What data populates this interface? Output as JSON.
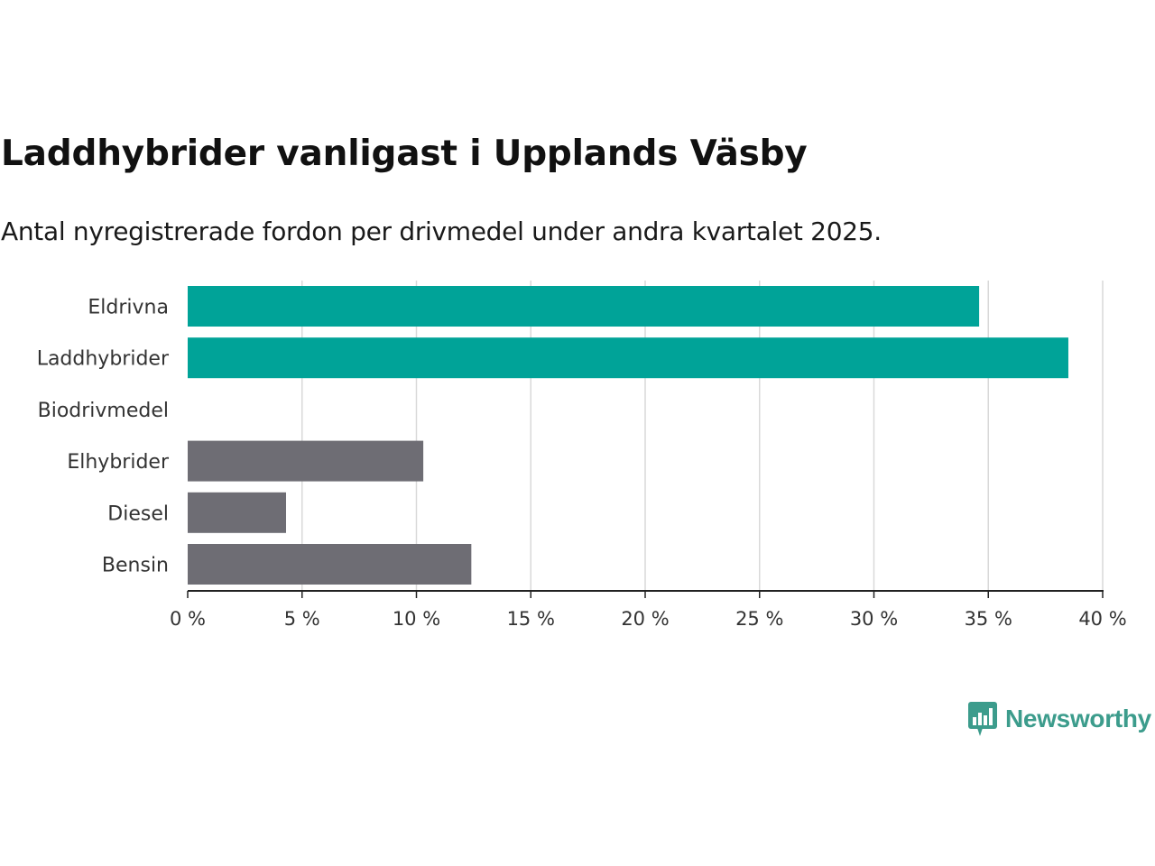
{
  "chart_data": {
    "type": "bar",
    "orientation": "horizontal",
    "title": "Laddhybrider vanligast i Upplands Väsby",
    "subtitle": "Antal nyregistrerade fordon per drivmedel under andra kvartalet 2025.",
    "categories": [
      "Eldrivna",
      "Laddhybrider",
      "Biodrivmedel",
      "Elhybrider",
      "Diesel",
      "Bensin"
    ],
    "values": [
      34.6,
      38.5,
      0,
      10.3,
      4.3,
      12.4
    ],
    "bar_colors": [
      "#00a398",
      "#00a398",
      "#6e6d74",
      "#6e6d74",
      "#6e6d74",
      "#6e6d74"
    ],
    "xlim": [
      0,
      40
    ],
    "xticks": [
      0,
      5,
      10,
      15,
      20,
      25,
      30,
      35,
      40
    ],
    "xtick_labels": [
      "0 %",
      "5 %",
      "10 %",
      "15 %",
      "20 %",
      "25 %",
      "30 %",
      "35 %",
      "40 %"
    ],
    "xlabel": "",
    "ylabel": "",
    "grid": "vertical",
    "legend": "none"
  },
  "branding": {
    "name": "Newsworthy",
    "icon": "newsworthy-logo-icon",
    "color": "#3c9c8c"
  }
}
